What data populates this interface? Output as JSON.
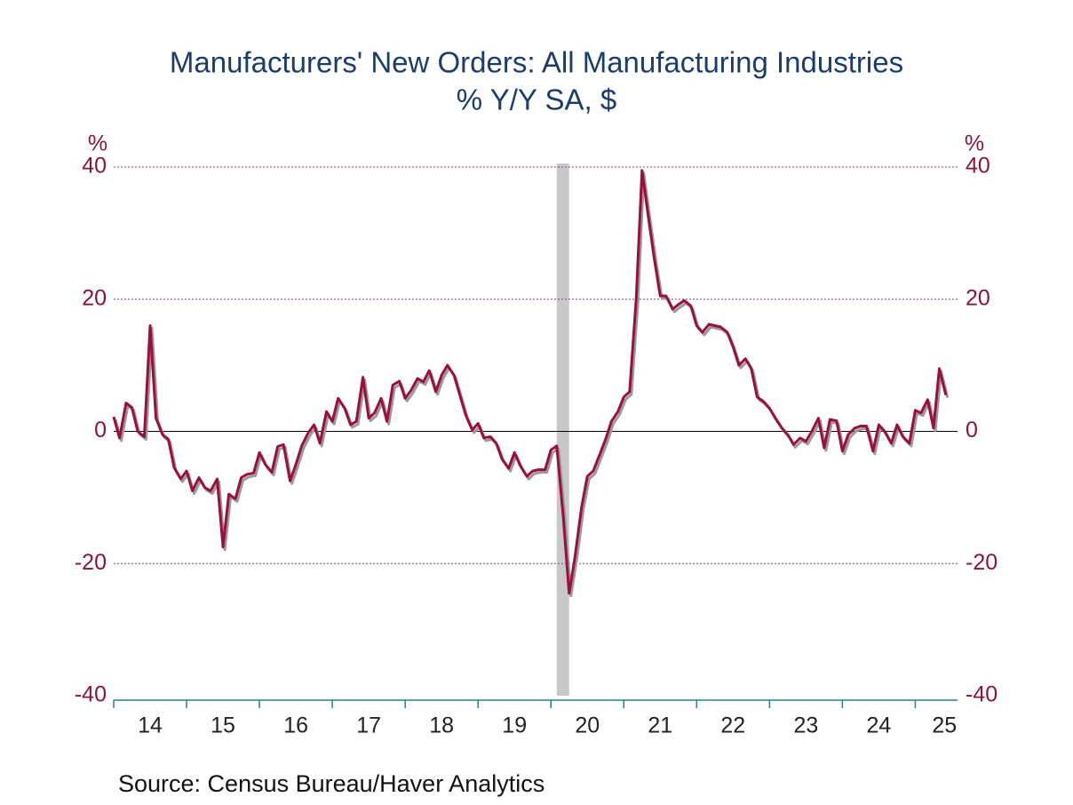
{
  "chart_data": {
    "type": "line",
    "title": "Manufacturers' New Orders: All Manufacturing Industries",
    "subtitle": "% Y/Y   SA, $",
    "y_unit": "%",
    "source": "Source:  Census Bureau/Haver Analytics",
    "xlim": [
      2014,
      2025.58
    ],
    "xticks": [
      2014,
      2015,
      2016,
      2017,
      2018,
      2019,
      2020,
      2021,
      2022,
      2023,
      2024,
      2025
    ],
    "x_labels": [
      {
        "value": 2014.5,
        "label": "14"
      },
      {
        "value": 2015.5,
        "label": "15"
      },
      {
        "value": 2016.5,
        "label": "16"
      },
      {
        "value": 2017.5,
        "label": "17"
      },
      {
        "value": 2018.5,
        "label": "18"
      },
      {
        "value": 2019.5,
        "label": "19"
      },
      {
        "value": 2020.5,
        "label": "20"
      },
      {
        "value": 2021.5,
        "label": "21"
      },
      {
        "value": 2022.5,
        "label": "22"
      },
      {
        "value": 2023.5,
        "label": "23"
      },
      {
        "value": 2024.5,
        "label": "24"
      },
      {
        "value": 2025.4,
        "label": "25"
      }
    ],
    "ylim": [
      -40,
      40
    ],
    "yticks": [
      -40,
      -20,
      0,
      20,
      40
    ],
    "grid": true,
    "recession": [
      2020.08,
      2020.25
    ],
    "recession_color": "#c8c8c8",
    "x": [
      2014,
      2014.08,
      2014.17,
      2014.25,
      2014.33,
      2014.42,
      2014.5,
      2014.58,
      2014.67,
      2014.75,
      2014.83,
      2014.92,
      2015,
      2015.08,
      2015.17,
      2015.25,
      2015.33,
      2015.42,
      2015.5,
      2015.58,
      2015.67,
      2015.75,
      2015.83,
      2015.92,
      2016,
      2016.08,
      2016.17,
      2016.25,
      2016.33,
      2016.42,
      2016.5,
      2016.58,
      2016.67,
      2016.75,
      2016.83,
      2016.92,
      2017,
      2017.08,
      2017.17,
      2017.25,
      2017.33,
      2017.42,
      2017.5,
      2017.58,
      2017.67,
      2017.75,
      2017.83,
      2017.92,
      2018,
      2018.08,
      2018.17,
      2018.25,
      2018.33,
      2018.42,
      2018.5,
      2018.58,
      2018.67,
      2018.75,
      2018.83,
      2018.92,
      2019,
      2019.08,
      2019.17,
      2019.25,
      2019.33,
      2019.42,
      2019.5,
      2019.58,
      2019.67,
      2019.75,
      2019.83,
      2019.92,
      2020,
      2020.08,
      2020.17,
      2020.25,
      2020.33,
      2020.42,
      2020.5,
      2020.58,
      2020.67,
      2020.75,
      2020.83,
      2020.92,
      2021,
      2021.08,
      2021.17,
      2021.25,
      2021.33,
      2021.42,
      2021.5,
      2021.58,
      2021.67,
      2021.75,
      2021.83,
      2021.92,
      2022,
      2022.08,
      2022.17,
      2022.25,
      2022.33,
      2022.42,
      2022.5,
      2022.58,
      2022.67,
      2022.75,
      2022.83,
      2022.92,
      2023,
      2023.08,
      2023.17,
      2023.25,
      2023.33,
      2023.42,
      2023.5,
      2023.58,
      2023.67,
      2023.75,
      2023.83,
      2023.92,
      2024,
      2024.08,
      2024.17,
      2024.25,
      2024.33,
      2024.42,
      2024.5,
      2024.58,
      2024.67,
      2024.75,
      2024.83,
      2024.92,
      2025,
      2025.08,
      2025.17,
      2025.25,
      2025.33,
      2025.42
    ],
    "series": [
      {
        "name": "New Orders % Y/Y",
        "color": "#9b0f3c",
        "values": [
          2.2,
          -1.0,
          4.3,
          3.6,
          0.0,
          -0.8,
          16.0,
          2.0,
          -0.5,
          -1.2,
          -5.5,
          -7.2,
          -6.0,
          -9.0,
          -7.0,
          -8.5,
          -9.0,
          -7.2,
          -17.5,
          -9.5,
          -10.2,
          -7.0,
          -6.5,
          -6.3,
          -3.2,
          -5.0,
          -6.2,
          -2.3,
          -2.0,
          -7.5,
          -5.0,
          -2.2,
          -0.2,
          1.0,
          -1.8,
          3.0,
          1.5,
          5.0,
          3.5,
          1.0,
          1.5,
          8.2,
          2.0,
          2.8,
          5.0,
          1.5,
          7.0,
          7.6,
          5.0,
          6.2,
          8.0,
          7.5,
          9.2,
          6.0,
          8.5,
          10.0,
          8.5,
          5.5,
          2.5,
          0.2,
          1.2,
          -1.0,
          -0.8,
          -1.8,
          -4.2,
          -5.6,
          -3.2,
          -5.2,
          -6.8,
          -6.0,
          -5.8,
          -5.8,
          -2.8,
          -2.2,
          -13.0,
          -24.5,
          -19.0,
          -11.5,
          -6.8,
          -6.0,
          -3.5,
          -1.2,
          1.5,
          3.0,
          5.2,
          6.0,
          20.0,
          39.5,
          33.0,
          26.0,
          20.5,
          20.5,
          18.5,
          19.2,
          19.8,
          19.0,
          16.0,
          15.0,
          16.2,
          16.0,
          15.8,
          15.0,
          12.8,
          10.0,
          11.0,
          9.5,
          5.2,
          4.5,
          3.5,
          2.0,
          0.5,
          -0.5,
          -2.0,
          -1.0,
          -1.5,
          0.0,
          2.0,
          -2.5,
          1.8,
          1.6,
          -3.0,
          -0.5,
          0.5,
          0.8,
          0.8,
          -3.0,
          1.0,
          0.0,
          -1.8,
          1.0,
          -0.8,
          -1.8,
          3.2,
          2.8,
          4.8,
          0.5,
          9.5,
          5.5
        ]
      }
    ]
  }
}
